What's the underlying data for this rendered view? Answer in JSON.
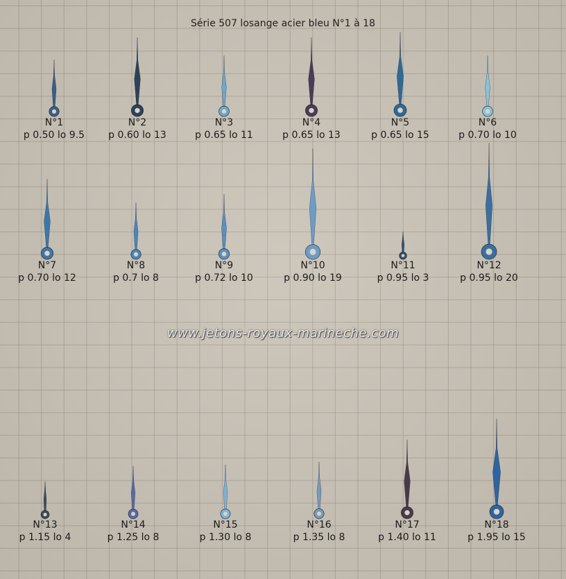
{
  "title": "Série 507 losange acier bleu N°1 à 18",
  "watermark": "www.jetons-royaux-marineche.com",
  "hands": [
    {
      "num": "N°1",
      "spec": "p 0.50 lo 9.5",
      "color": "#3a5f86"
    },
    {
      "num": "N°2",
      "spec": "p 0.60 lo 13",
      "color": "#2d4257"
    },
    {
      "num": "N°3",
      "spec": "p 0.65 lo 11",
      "color": "#6fa8c8"
    },
    {
      "num": "N°4",
      "spec": "p 0.65 lo 13",
      "color": "#4a3c55"
    },
    {
      "num": "N°5",
      "spec": "p 0.65 lo 15",
      "color": "#2e6a96"
    },
    {
      "num": "N°6",
      "spec": "p 0.70 lo 10",
      "color": "#8ac2d8"
    },
    {
      "num": "N°7",
      "spec": "p 0.70 lo 12",
      "color": "#3d77a8"
    },
    {
      "num": "N°8",
      "spec": "p 0.7 lo 8",
      "color": "#4a86b8"
    },
    {
      "num": "N°9",
      "spec": "p 0.72 lo 10",
      "color": "#5b8fc0"
    },
    {
      "num": "N°10",
      "spec": "p 0.90 lo 19",
      "color": "#6c9dc6"
    },
    {
      "num": "N°11",
      "spec": "p 0.95 lo 3",
      "color": "#34506e"
    },
    {
      "num": "N°12",
      "spec": "p 0.95 lo 20",
      "color": "#3a6f9e"
    },
    {
      "num": "N°13",
      "spec": "p 1.15 lo 4",
      "color": "#3a4c58"
    },
    {
      "num": "N°14",
      "spec": "p 1.25 lo 8",
      "color": "#5a6aa8"
    },
    {
      "num": "N°15",
      "spec": "p 1.30 lo 8",
      "color": "#7fb3d6"
    },
    {
      "num": "N°16",
      "spec": "p 1.35 lo 8",
      "color": "#7a9ab8"
    },
    {
      "num": "N°17",
      "spec": "p 1.40 lo 11",
      "color": "#4a3a48"
    },
    {
      "num": "N°18",
      "spec": "p 1.95 lo 15",
      "color": "#2f64a0"
    }
  ]
}
